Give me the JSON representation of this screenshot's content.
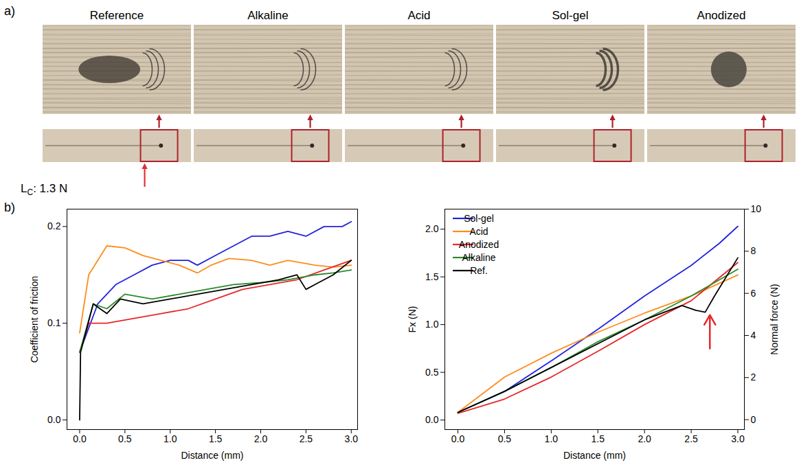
{
  "panel_a": {
    "letter": "a)",
    "images": [
      {
        "title": "Reference"
      },
      {
        "title": "Alkaline"
      },
      {
        "title": "Acid"
      },
      {
        "title": "Sol-gel"
      },
      {
        "title": "Anodized"
      }
    ],
    "critical_load": {
      "main": "L",
      "subscript": "C",
      "text": ": 1.3 N"
    }
  },
  "panel_b": {
    "letter": "b)"
  },
  "chart_data": [
    {
      "type": "line",
      "x_label": "Distance (mm)",
      "y_label": "Coefficient of friction",
      "xlim": [
        -0.14,
        3.07
      ],
      "ylim": [
        -0.01,
        0.218
      ],
      "xticks": [
        {
          "value": 0,
          "label": "0.0"
        },
        0.5,
        {
          "value": 1,
          "label": "1.0"
        },
        1.5,
        {
          "value": 2,
          "label": "2.0"
        },
        2.5,
        {
          "value": 3,
          "label": "3.0"
        }
      ],
      "yticks": [
        {
          "value": 0,
          "label": "0.0"
        },
        0.1,
        0.2
      ],
      "grid": false,
      "series": [
        {
          "name": "Sol-gel",
          "color": "#2222dd",
          "x": [
            0,
            0.2,
            0.4,
            0.6,
            0.8,
            1.0,
            1.2,
            1.3,
            1.5,
            1.7,
            1.9,
            2.1,
            2.3,
            2.5,
            2.7,
            2.9,
            3.0
          ],
          "values": [
            0.07,
            0.12,
            0.14,
            0.15,
            0.16,
            0.165,
            0.165,
            0.16,
            0.17,
            0.18,
            0.19,
            0.19,
            0.195,
            0.19,
            0.2,
            0.2,
            0.205
          ]
        },
        {
          "name": "Acid",
          "color": "#ff8c1a",
          "x": [
            0,
            0.1,
            0.3,
            0.5,
            0.7,
            0.9,
            1.1,
            1.3,
            1.45,
            1.65,
            1.9,
            2.1,
            2.3,
            2.6,
            2.8,
            3.0
          ],
          "values": [
            0.09,
            0.15,
            0.18,
            0.178,
            0.17,
            0.165,
            0.16,
            0.152,
            0.16,
            0.167,
            0.165,
            0.16,
            0.165,
            0.16,
            0.158,
            0.16
          ]
        },
        {
          "name": "Anodized",
          "color": "#e8262b",
          "x": [
            0,
            0.1,
            0.3,
            0.6,
            0.9,
            1.2,
            1.5,
            1.8,
            2.1,
            2.4,
            2.7,
            3.0
          ],
          "values": [
            0.07,
            0.1,
            0.1,
            0.105,
            0.11,
            0.115,
            0.125,
            0.135,
            0.14,
            0.145,
            0.155,
            0.165
          ]
        },
        {
          "name": "Alkaline",
          "color": "#2a8a2a",
          "x": [
            0,
            0.15,
            0.3,
            0.5,
            0.8,
            1.1,
            1.4,
            1.7,
            2.0,
            2.3,
            2.6,
            2.8,
            3.0
          ],
          "values": [
            0.07,
            0.12,
            0.115,
            0.13,
            0.125,
            0.13,
            0.135,
            0.14,
            0.142,
            0.145,
            0.15,
            0.152,
            0.155
          ]
        },
        {
          "name": "Ref.",
          "color": "#000000",
          "x": [
            0,
            0.01,
            0.15,
            0.3,
            0.45,
            0.7,
            1.0,
            1.3,
            1.6,
            1.9,
            2.2,
            2.4,
            2.5,
            2.6,
            2.8,
            3.0
          ],
          "values": [
            0,
            0.07,
            0.12,
            0.11,
            0.125,
            0.12,
            0.125,
            0.13,
            0.135,
            0.14,
            0.145,
            0.15,
            0.135,
            0.14,
            0.15,
            0.165
          ]
        }
      ]
    },
    {
      "type": "line",
      "x_label": "Distance (mm)",
      "y_label": "Fx (N)",
      "y2_label": "Normal force (N)",
      "xlim": [
        -0.14,
        3.07
      ],
      "ylim": [
        -0.1,
        2.21
      ],
      "y2lim": [
        -0.47,
        10
      ],
      "xticks": [
        {
          "value": 0,
          "label": "0.0"
        },
        0.5,
        {
          "value": 1,
          "label": "1.0"
        },
        1.5,
        {
          "value": 2,
          "label": "2.0"
        },
        2.5,
        {
          "value": 3,
          "label": "3.0"
        }
      ],
      "yticks": [
        {
          "value": 0,
          "label": "0.0"
        },
        0.5,
        {
          "value": 1,
          "label": "1.0"
        },
        1.5,
        {
          "value": 2,
          "label": "2.0"
        }
      ],
      "y2ticks": [
        0,
        2,
        4,
        6,
        8,
        10
      ],
      "grid": false,
      "legend": "top-left",
      "series": [
        {
          "name": "Sol-gel",
          "color": "#2222dd",
          "x": [
            0,
            0.5,
            1.0,
            1.5,
            2.0,
            2.5,
            2.8,
            3.0
          ],
          "values": [
            0.08,
            0.3,
            0.62,
            0.95,
            1.3,
            1.62,
            1.85,
            2.03
          ]
        },
        {
          "name": "Acid",
          "color": "#ff8c1a",
          "x": [
            0,
            0.5,
            1.0,
            1.5,
            2.0,
            2.5,
            3.0
          ],
          "values": [
            0.08,
            0.45,
            0.7,
            0.92,
            1.12,
            1.3,
            1.52
          ]
        },
        {
          "name": "Anodized",
          "color": "#e8262b",
          "x": [
            0,
            0.5,
            1.0,
            1.5,
            2.0,
            2.5,
            3.0
          ],
          "values": [
            0.07,
            0.22,
            0.45,
            0.72,
            1.0,
            1.25,
            1.65
          ]
        },
        {
          "name": "Alkaline",
          "color": "#2a8a2a",
          "x": [
            0,
            0.5,
            1.0,
            1.5,
            2.0,
            2.5,
            3.0
          ],
          "values": [
            0.08,
            0.3,
            0.55,
            0.82,
            1.05,
            1.3,
            1.58
          ]
        },
        {
          "name": "Ref.",
          "color": "#000000",
          "x": [
            0,
            0.5,
            1.0,
            1.5,
            2.0,
            2.4,
            2.55,
            2.65,
            2.75,
            3.0
          ],
          "values": [
            0.08,
            0.3,
            0.55,
            0.8,
            1.05,
            1.2,
            1.15,
            1.13,
            1.3,
            1.7
          ]
        }
      ],
      "annotations": [
        {
          "type": "arrow",
          "x": 2.7,
          "y_from": 0.75,
          "y_to": 1.1,
          "color": "#e8262b"
        }
      ]
    }
  ]
}
